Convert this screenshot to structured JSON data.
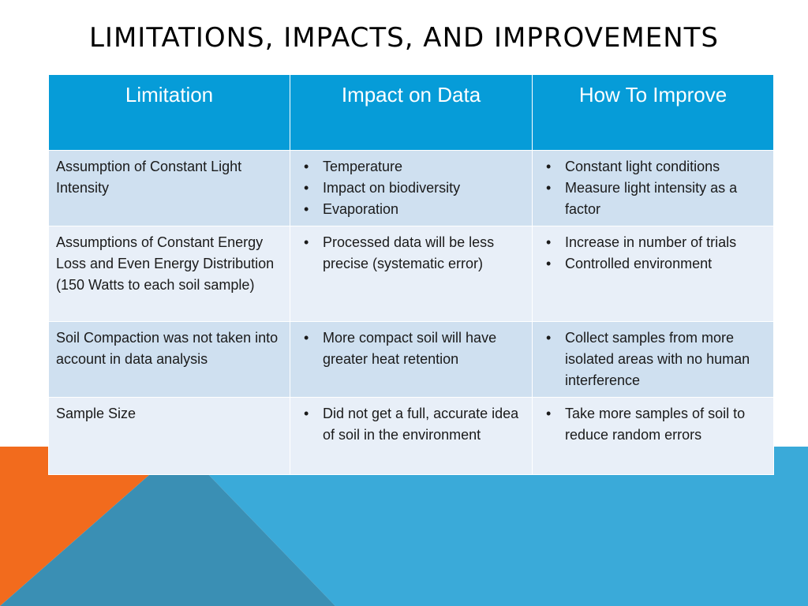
{
  "slide": {
    "title": "LIMITATIONS, IMPACTS, AND IMPROVEMENTS",
    "colors": {
      "header": "#069cd8",
      "accent_orange": "#f26b1d",
      "accent_blue": "#3aaad9"
    }
  },
  "table": {
    "headers": [
      "Limitation",
      "Impact on Data",
      "How To Improve"
    ],
    "rows": [
      {
        "limitation": "Assumption of Constant Light Intensity",
        "impact": [
          "Temperature",
          "Impact on biodiversity",
          "Evaporation"
        ],
        "improve": [
          "Constant light conditions",
          "Measure light intensity as a factor"
        ]
      },
      {
        "limitation": "Assumptions of Constant Energy Loss and Even Energy Distribution (150 Watts to each soil sample)",
        "impact": [
          "Processed data will be less precise (systematic error)"
        ],
        "improve": [
          "Increase in number of trials",
          "Controlled environment"
        ]
      },
      {
        "limitation": "Soil Compaction was not taken into account in data analysis",
        "impact": [
          "More compact soil will have greater heat retention"
        ],
        "improve": [
          "Collect samples from more isolated areas with no human interference"
        ]
      },
      {
        "limitation": "Sample Size",
        "impact": [
          "Did not get a full, accurate idea of soil in the environment"
        ],
        "improve": [
          "Take more samples of soil to reduce random errors"
        ]
      }
    ]
  }
}
